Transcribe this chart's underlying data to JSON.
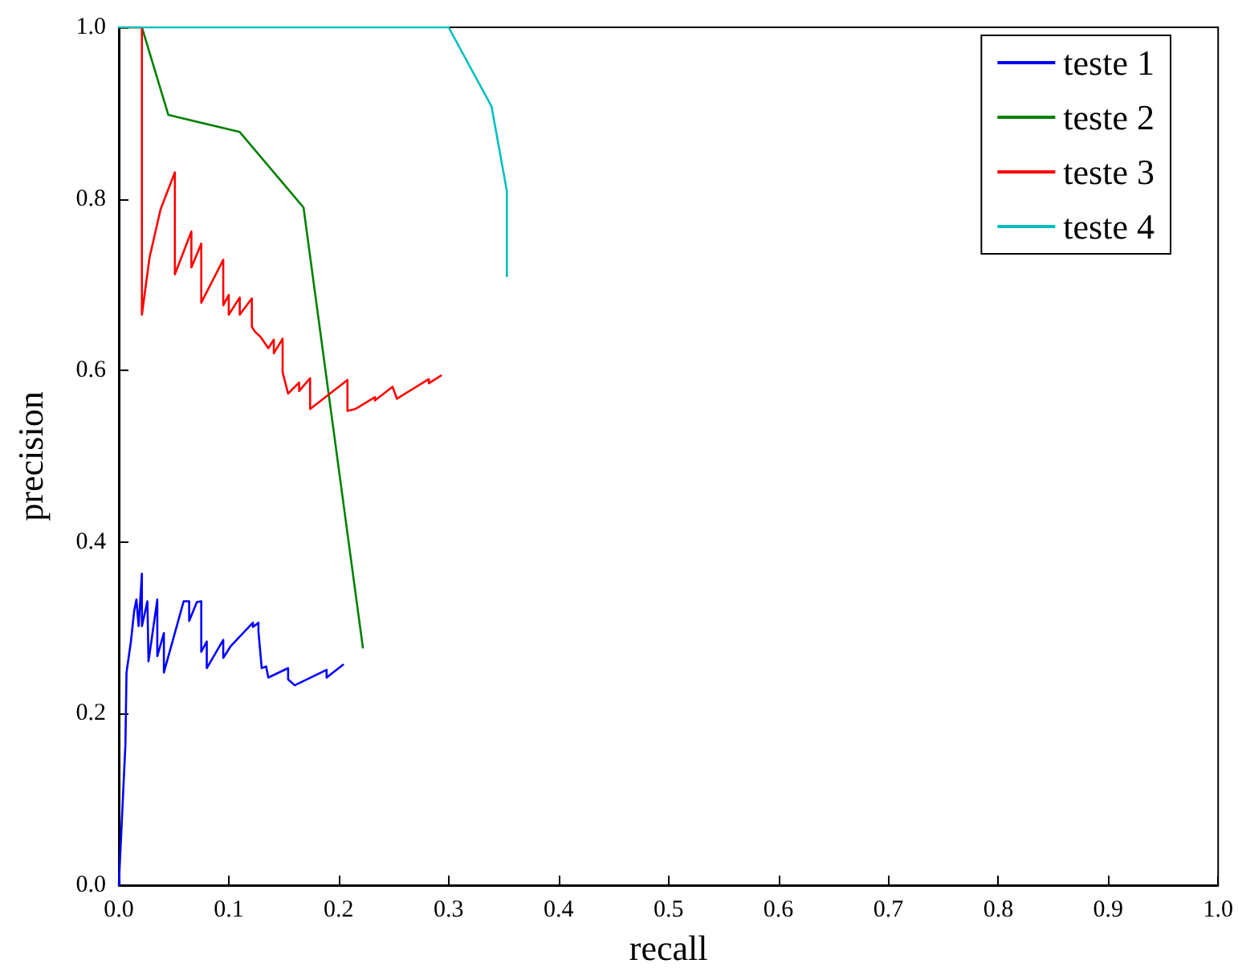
{
  "chart_data": {
    "type": "line",
    "xlabel": "recall",
    "ylabel": "precision",
    "xlim": [
      0,
      1
    ],
    "ylim": [
      0,
      1
    ],
    "xticks": [
      {
        "value": 0,
        "label": "0.0"
      },
      {
        "value": 0.1,
        "label": "0.1"
      },
      {
        "value": 0.2,
        "label": "0.2"
      },
      {
        "value": 0.3,
        "label": "0.3"
      },
      {
        "value": 0.4,
        "label": "0.4"
      },
      {
        "value": 0.5,
        "label": "0.5"
      },
      {
        "value": 0.6,
        "label": "0.6"
      },
      {
        "value": 0.7,
        "label": "0.7"
      },
      {
        "value": 0.8,
        "label": "0.8"
      },
      {
        "value": 0.9,
        "label": "0.9"
      },
      {
        "value": 1,
        "label": "1.0"
      }
    ],
    "yticks": [
      {
        "value": 0,
        "label": "0.0"
      },
      {
        "value": 0.2,
        "label": "0.2"
      },
      {
        "value": 0.4,
        "label": "0.4"
      },
      {
        "value": 0.6,
        "label": "0.6"
      },
      {
        "value": 0.8,
        "label": "0.8"
      },
      {
        "value": 1,
        "label": "1.0"
      }
    ],
    "grid": false,
    "legend": "top right",
    "marker": "none",
    "line_style": "solid",
    "series": [
      {
        "name": "teste 1",
        "color": "#0000ff",
        "x": [
          0,
          0.006,
          0.007,
          0.011,
          0.014,
          0.016,
          0.018,
          0.021,
          0.021,
          0.026,
          0.027,
          0.035,
          0.035,
          0.041,
          0.041,
          0.059,
          0.064,
          0.064,
          0.071,
          0.075,
          0.075,
          0.08,
          0.08,
          0.095,
          0.095,
          0.102,
          0.122,
          0.122,
          0.127,
          0.127,
          0.13,
          0.134,
          0.136,
          0.154,
          0.154,
          0.16,
          0.189,
          0.189,
          0.204
        ],
        "values": [
          0,
          0.164,
          0.248,
          0.284,
          0.32,
          0.333,
          0.302,
          0.363,
          0.302,
          0.331,
          0.261,
          0.333,
          0.267,
          0.294,
          0.248,
          0.331,
          0.331,
          0.308,
          0.33,
          0.331,
          0.272,
          0.284,
          0.253,
          0.286,
          0.265,
          0.279,
          0.306,
          0.301,
          0.306,
          0.296,
          0.253,
          0.255,
          0.242,
          0.253,
          0.24,
          0.233,
          0.251,
          0.242,
          0.257
        ]
      },
      {
        "name": "teste 2",
        "color": "#008000",
        "x": [
          0,
          0.021,
          0.045,
          0.11,
          0.168,
          0.222
        ],
        "values": [
          1,
          1,
          0.898,
          0.878,
          0.79,
          0.277
        ]
      },
      {
        "name": "teste 3",
        "color": "#ff0000",
        "x": [
          0,
          0.021,
          0.021,
          0.028,
          0.038,
          0.051,
          0.051,
          0.066,
          0.066,
          0.075,
          0.075,
          0.095,
          0.095,
          0.1,
          0.1,
          0.11,
          0.11,
          0.121,
          0.121,
          0.124,
          0.129,
          0.136,
          0.141,
          0.141,
          0.149,
          0.149,
          0.154,
          0.164,
          0.164,
          0.174,
          0.174,
          0.208,
          0.208,
          0.215,
          0.233,
          0.233,
          0.249,
          0.253,
          0.282,
          0.282,
          0.293
        ],
        "values": [
          1,
          1,
          0.665,
          0.732,
          0.788,
          0.831,
          0.712,
          0.762,
          0.72,
          0.748,
          0.679,
          0.729,
          0.676,
          0.688,
          0.665,
          0.685,
          0.665,
          0.684,
          0.651,
          0.645,
          0.639,
          0.626,
          0.636,
          0.62,
          0.637,
          0.598,
          0.573,
          0.586,
          0.576,
          0.591,
          0.555,
          0.589,
          0.553,
          0.555,
          0.569,
          0.565,
          0.581,
          0.567,
          0.59,
          0.585,
          0.594
        ]
      },
      {
        "name": "teste 4",
        "color": "#00bfbf",
        "x": [
          0,
          0.3,
          0.339,
          0.353,
          0.353
        ],
        "values": [
          1,
          1,
          0.908,
          0.809,
          0.71
        ]
      }
    ]
  }
}
